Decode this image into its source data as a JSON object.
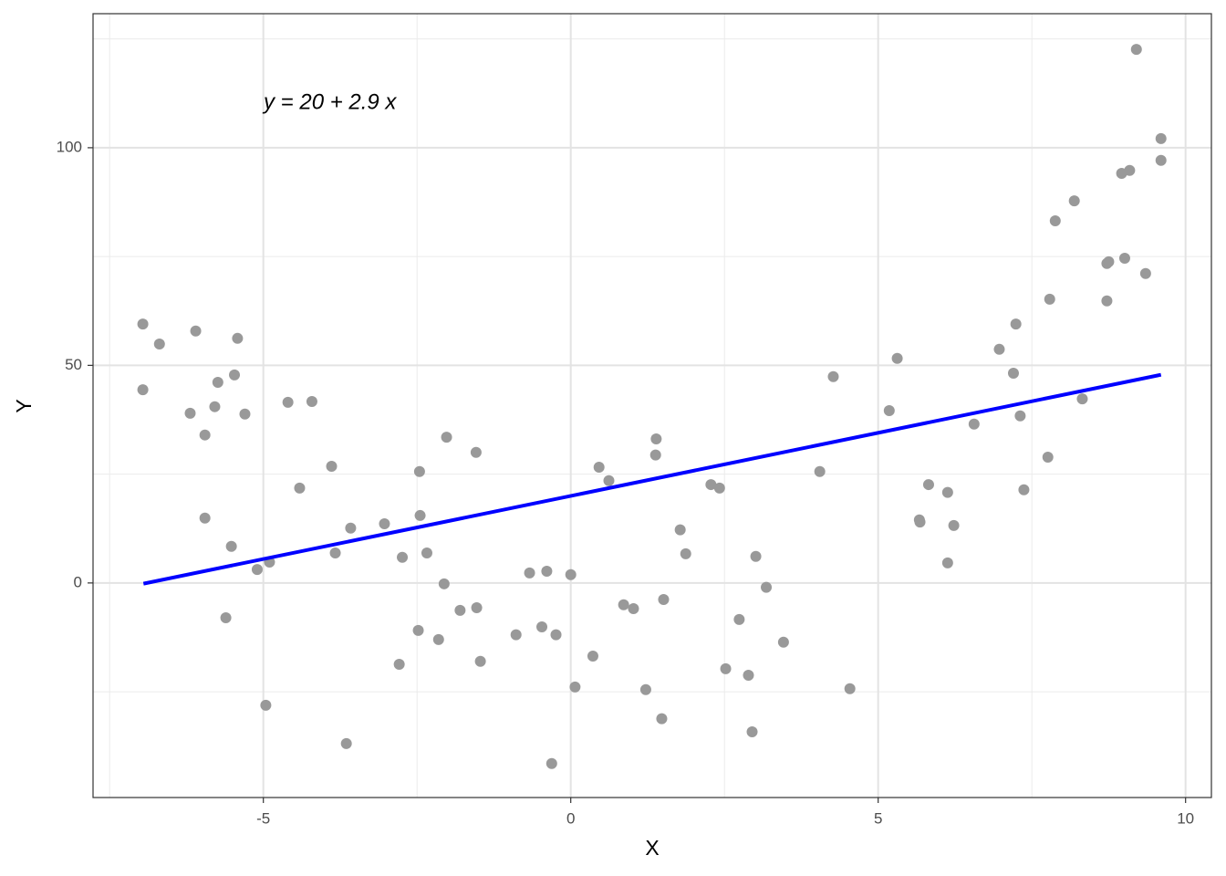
{
  "chart_data": {
    "type": "scatter",
    "xlabel": "X",
    "ylabel": "Y",
    "annotation": "y = 20 + 2.9 x",
    "xlim": [
      -7.77,
      10.42
    ],
    "ylim": [
      -49.3,
      130.8
    ],
    "xticks": [
      -5,
      0,
      5,
      10
    ],
    "yticks": [
      0,
      50,
      100
    ],
    "xminor_ticks": [
      -7.5,
      -2.5,
      2.5,
      7.5
    ],
    "yminor_ticks": [
      -25,
      25,
      75,
      125
    ],
    "grid": true,
    "series": [
      {
        "color": "#999999",
        "x": [
          -6.96,
          -6.69,
          -6.1,
          -6.96,
          -5.42,
          -5.47,
          -5.74,
          -5.79,
          -6.19,
          -5.3,
          -5.95,
          -5.95,
          -5.52,
          -5.1,
          -4.9,
          -5.61,
          -4.96,
          -4.6,
          -4.21,
          -4.41,
          -3.89,
          -3.58,
          -3.83,
          -3.65,
          -3.03,
          -2.74,
          -2.79,
          -2.46,
          -2.45,
          -2.34,
          -2.48,
          -2.02,
          -2.06,
          -2.15,
          -1.8,
          -1.53,
          -1.54,
          -1.47,
          -0.89,
          -0.67,
          -0.39,
          -0.47,
          -0.24,
          -0.31,
          0.0,
          0.07,
          0.36,
          0.46,
          0.62,
          0.86,
          1.02,
          1.22,
          1.39,
          1.38,
          1.51,
          1.48,
          1.78,
          1.87,
          2.28,
          2.42,
          2.52,
          2.74,
          2.89,
          2.95,
          3.01,
          3.18,
          3.46,
          4.05,
          4.27,
          4.54,
          5.18,
          5.31,
          5.67,
          5.68,
          5.82,
          6.13,
          6.13,
          6.23,
          6.56,
          6.97,
          7.2,
          7.24,
          7.31,
          7.37,
          7.76,
          7.79,
          7.88,
          8.19,
          8.32,
          8.72,
          8.75,
          8.72,
          9.01,
          8.96,
          9.09,
          9.35,
          9.2,
          9.6,
          9.6
        ],
        "values": [
          59.5,
          54.9,
          57.9,
          44.4,
          56.2,
          47.8,
          46.1,
          40.5,
          39.0,
          38.8,
          34.0,
          14.9,
          8.4,
          3.1,
          4.8,
          -8.0,
          -28.1,
          41.5,
          41.7,
          21.8,
          26.8,
          12.6,
          6.9,
          -36.9,
          13.6,
          5.9,
          -18.7,
          25.6,
          15.5,
          6.9,
          -10.9,
          33.5,
          -0.2,
          -13.0,
          -6.3,
          -5.7,
          30.0,
          -18.0,
          -11.9,
          2.3,
          2.7,
          -10.1,
          -11.9,
          -41.5,
          1.9,
          -23.9,
          -16.8,
          26.6,
          23.5,
          -5.0,
          -5.9,
          -24.5,
          33.1,
          29.4,
          -3.8,
          -31.2,
          12.2,
          6.7,
          22.6,
          21.8,
          -19.7,
          -8.4,
          -21.2,
          -34.2,
          6.1,
          -1.0,
          -13.6,
          25.6,
          47.4,
          -24.3,
          39.6,
          51.6,
          14.5,
          14.0,
          22.6,
          20.8,
          4.6,
          13.2,
          36.5,
          53.7,
          48.2,
          59.5,
          38.4,
          21.4,
          28.9,
          65.2,
          83.2,
          87.8,
          42.3,
          73.4,
          73.8,
          64.8,
          74.6,
          94.1,
          94.8,
          71.1,
          122.6,
          102.1,
          97.1
        ]
      },
      {
        "type": "line",
        "color": "#0000ff",
        "x": [
          -6.95,
          9.6
        ],
        "values": [
          -0.16,
          47.84
        ]
      }
    ]
  }
}
